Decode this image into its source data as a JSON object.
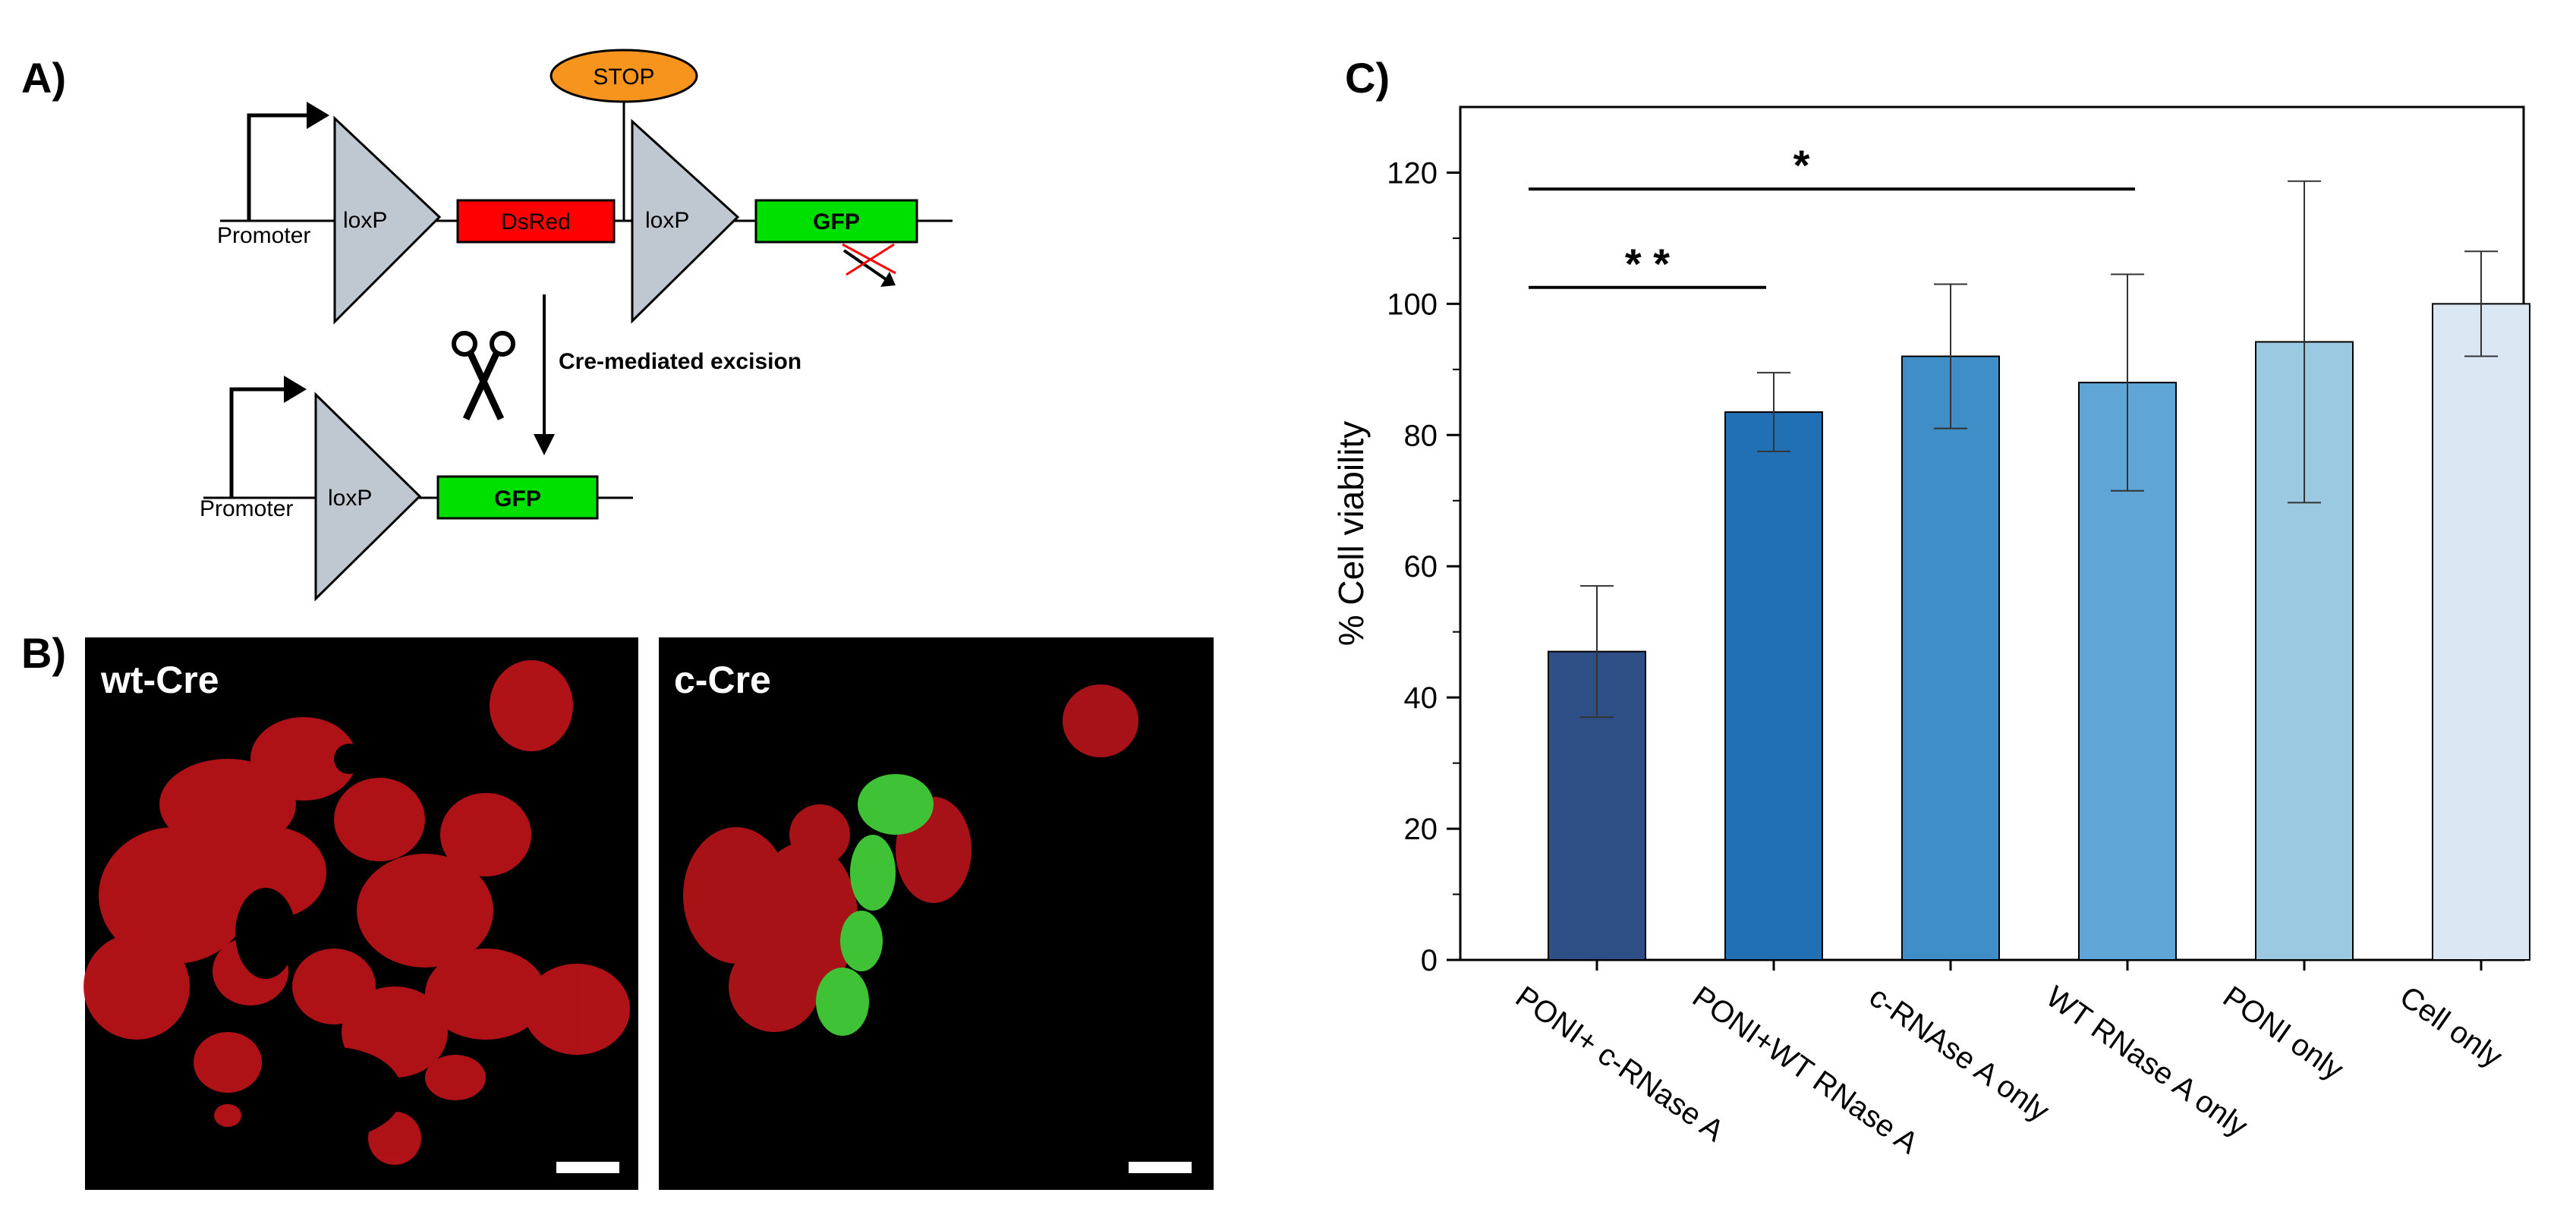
{
  "panels": {
    "a_label": "A)",
    "b_label": "B)",
    "c_label": "C)"
  },
  "diagram": {
    "promoter_label": "Promoter",
    "loxp_label": "loxP",
    "dsred_label": "DsRed",
    "gfp_label": "GFP",
    "stop_label": "STOP",
    "excision_label": "Cre-mediated excision",
    "colors": {
      "loxp": "#BFC8D1",
      "dsred": "#FF0000",
      "gfp": "#00E000",
      "stop": "#F7941D",
      "cross": "#FF0000"
    }
  },
  "microscopy": {
    "left_label": "wt-Cre",
    "right_label": "c-Cre",
    "colors": {
      "background": "#000000",
      "red_channel": "#C8141A",
      "green_channel": "#3FC236",
      "scale_bar": "#FFFFFF"
    }
  },
  "chart_data": {
    "type": "bar",
    "title": "",
    "xlabel": "",
    "ylabel": "% Cell viability",
    "ylim": [
      0,
      130
    ],
    "yticks": [
      "0",
      "20",
      "40",
      "60",
      "80",
      "100",
      "120"
    ],
    "categories": [
      "PONI+ c-RNase A",
      "PONI+WT RNase A",
      "c-RNAse A only",
      "WT RNase A only",
      "PONI only",
      "Cell only"
    ],
    "values": [
      47,
      83.5,
      92,
      88,
      94.2,
      100
    ],
    "errors": [
      10,
      6,
      11,
      16.5,
      24.5,
      8
    ],
    "colors": [
      "#2D4F86",
      "#2170B3",
      "#3F8EC8",
      "#5FA6D6",
      "#9CC9E2",
      "#DBE8F4"
    ],
    "significance": [
      {
        "label": "* *",
        "from": 0,
        "to": 1,
        "y": 102.5
      },
      {
        "label": "*",
        "from": 0,
        "to": 3,
        "y": 117.5
      }
    ],
    "grid": false
  }
}
